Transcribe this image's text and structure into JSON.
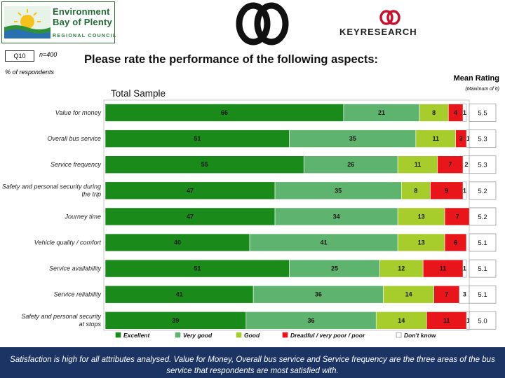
{
  "header": {
    "logo": {
      "line1": "Environment",
      "line2": "Bay of Plenty",
      "line3": "REGIONAL COUNCIL"
    },
    "partner_logo": {
      "wordmark": "KEYRESEARCH"
    },
    "question_badge": "Q10",
    "sample_size": "n=400",
    "unit_note": "% of respondents",
    "title": "Please rate the performance of the following aspects:",
    "subtitle": "Total Sample",
    "mean_heading": "Mean Rating",
    "mean_subheading": "(Maximum of 6)"
  },
  "chart_data": {
    "type": "bar",
    "orientation": "horizontal",
    "stacked": true,
    "normalized_percent": true,
    "categories": [
      "Value for money",
      "Overall bus service",
      "Service frequency",
      "Safety and personal security during the trip",
      "Journey time",
      "Vehicle quality / comfort",
      "Service availability",
      "Service reliability",
      "Safety and personal security at stops"
    ],
    "series": [
      {
        "name": "Excellent",
        "color": "#1a8a1a",
        "values": [
          66,
          51,
          55,
          47,
          47,
          40,
          51,
          41,
          39
        ]
      },
      {
        "name": "Very good",
        "color": "#5eb46e",
        "values": [
          21,
          35,
          26,
          35,
          34,
          41,
          25,
          36,
          36
        ]
      },
      {
        "name": "Good",
        "color": "#a7cd2c",
        "values": [
          8,
          11,
          11,
          8,
          13,
          13,
          12,
          14,
          14
        ]
      },
      {
        "name": "Dreadful / very poor / poor",
        "color": "#e8151b",
        "values": [
          4,
          3,
          7,
          9,
          7,
          6,
          11,
          7,
          11
        ]
      },
      {
        "name": "Don't know",
        "color": "#ffffff",
        "values": [
          1,
          1,
          2,
          1,
          0,
          0,
          1,
          3,
          1
        ]
      }
    ],
    "mean_ratings": [
      "5.5",
      "5.3",
      "5.3",
      "5.2",
      "5.2",
      "5.1",
      "5.1",
      "5.1",
      "5.0"
    ],
    "xlim": [
      0,
      100
    ],
    "legend_position": "bottom"
  },
  "footer": {
    "text": "Satisfaction is high for all attributes analysed.  Value for Money, Overall bus service and Service frequency are the three areas of the bus service that respondents are most satisfied with."
  }
}
